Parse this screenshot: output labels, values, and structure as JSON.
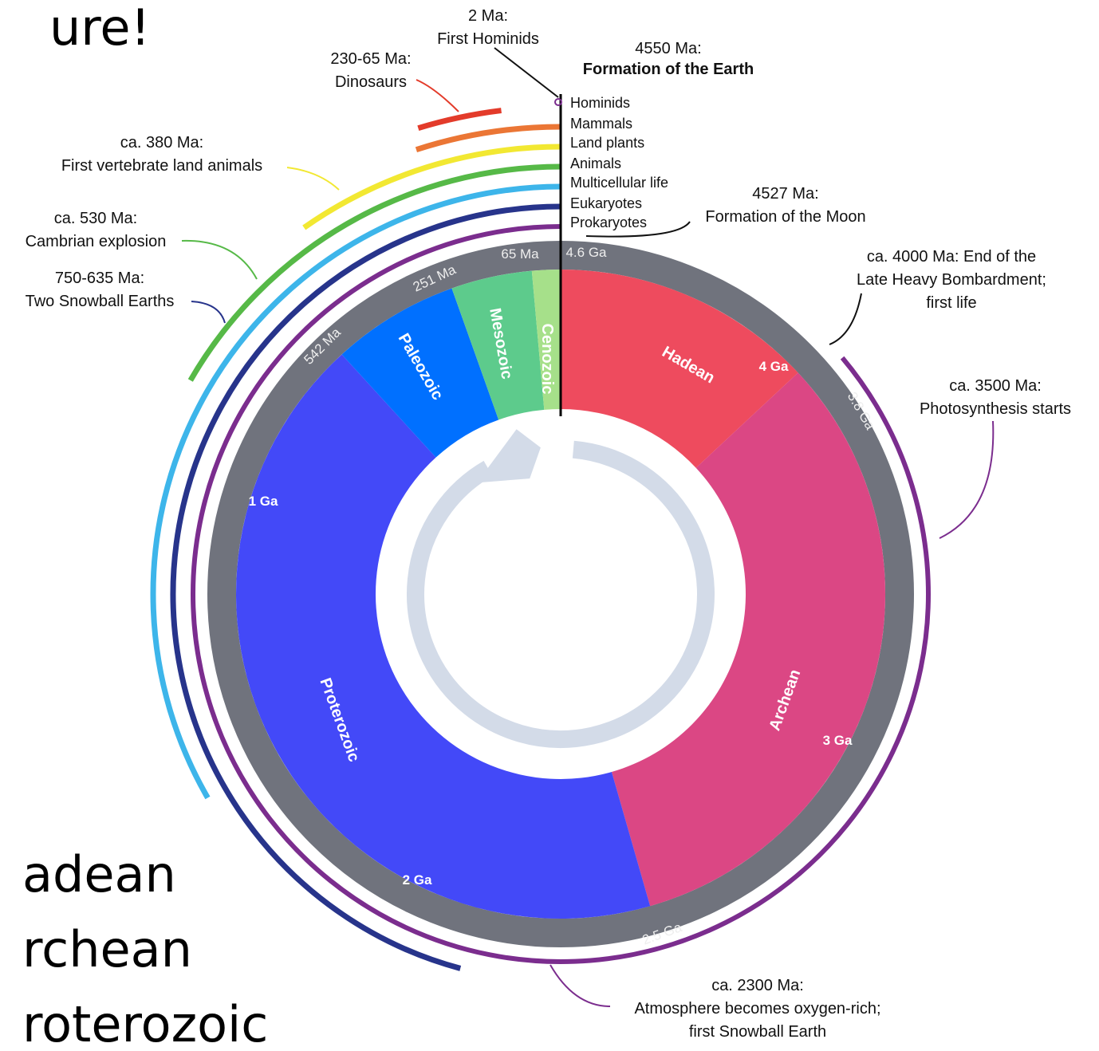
{
  "slide_text": {
    "title_fragment": "ure!",
    "bullets": [
      "adean",
      "rchean",
      "roterozoic"
    ]
  },
  "divisions": [
    "Hadean",
    "Archean",
    "Proterozoic",
    "Paleozoic",
    "Mesozoic",
    "Cenozoic"
  ],
  "time_marks": [
    "4.6 Ga",
    "4 Ga",
    "3.8 Ga",
    "3 Ga",
    "2.5 Ga",
    "2 Ga",
    "1 Ga",
    "542 Ma",
    "251 Ma",
    "65 Ma"
  ],
  "life_legend": [
    "Hominids",
    "Mammals",
    "Land plants",
    "Animals",
    "Multicellular life",
    "Eukaryotes",
    "Prokaryotes"
  ],
  "events": [
    {
      "lines": [
        "2 Ma:",
        "First Hominids"
      ]
    },
    {
      "lines": [
        "4550 Ma:",
        "Formation of the Earth"
      ]
    },
    {
      "lines": [
        "230-65 Ma:",
        "Dinosaurs"
      ]
    },
    {
      "lines": [
        "ca. 380 Ma:",
        "First vertebrate land animals"
      ]
    },
    {
      "lines": [
        "ca. 530 Ma:",
        "Cambrian explosion"
      ]
    },
    {
      "lines": [
        "750-635 Ma:",
        "Two Snowball Earths"
      ]
    },
    {
      "lines": [
        "4527 Ma:",
        "Formation of the Moon"
      ]
    },
    {
      "lines": [
        "ca. 4000 Ma: End of the",
        "Late Heavy Bombardment;",
        "first life"
      ]
    },
    {
      "lines": [
        "ca. 3500 Ma:",
        "Photosynthesis starts"
      ]
    },
    {
      "lines": [
        "ca. 2300 Ma:",
        "Atmosphere becomes oxygen-rich;",
        "first Snowball Earth"
      ]
    }
  ]
}
